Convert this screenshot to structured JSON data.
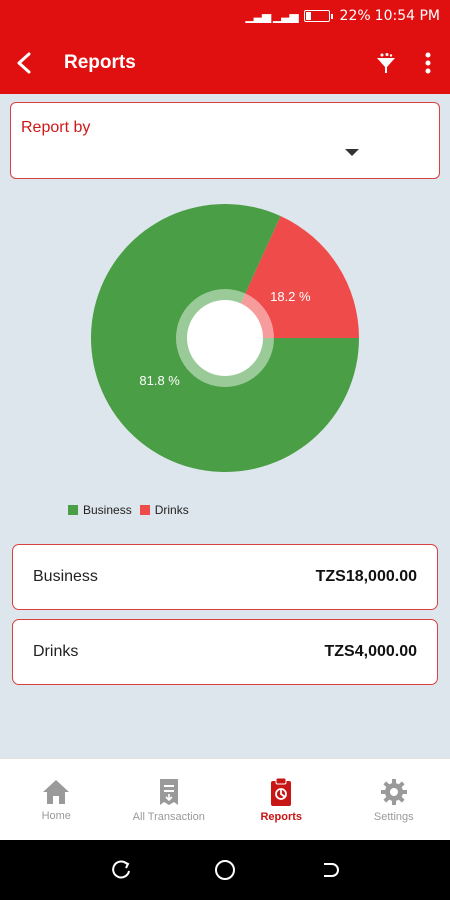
{
  "status_bar": {
    "battery": "22%",
    "time": "10:54 PM"
  },
  "app_bar": {
    "title": "Reports",
    "back_icon": "back-arrow-icon",
    "filter_icon": "filter-icon",
    "menu_icon": "more-vert-icon"
  },
  "report_by": {
    "label": "Report by",
    "selected": ""
  },
  "chart_data": {
    "type": "pie",
    "title": "",
    "labels": [
      "Business",
      "Drinks"
    ],
    "values": [
      81.8,
      18.2
    ],
    "value_labels": [
      "81.8 %",
      "18.2 %"
    ],
    "colors": [
      "#4a9e45",
      "#f04b4b"
    ],
    "legend": "bottom-left"
  },
  "summary": [
    {
      "name": "Business",
      "amount": "TZS18,000.00"
    },
    {
      "name": "Drinks",
      "amount": "TZS4,000.00"
    }
  ],
  "bottom_nav": [
    {
      "label": "Home",
      "icon": "home-icon",
      "active": false
    },
    {
      "label": "All Transaction",
      "icon": "transaction-icon",
      "active": false
    },
    {
      "label": "Reports",
      "icon": "report-icon",
      "active": true
    },
    {
      "label": "Settings",
      "icon": "gear-icon",
      "active": false
    }
  ]
}
